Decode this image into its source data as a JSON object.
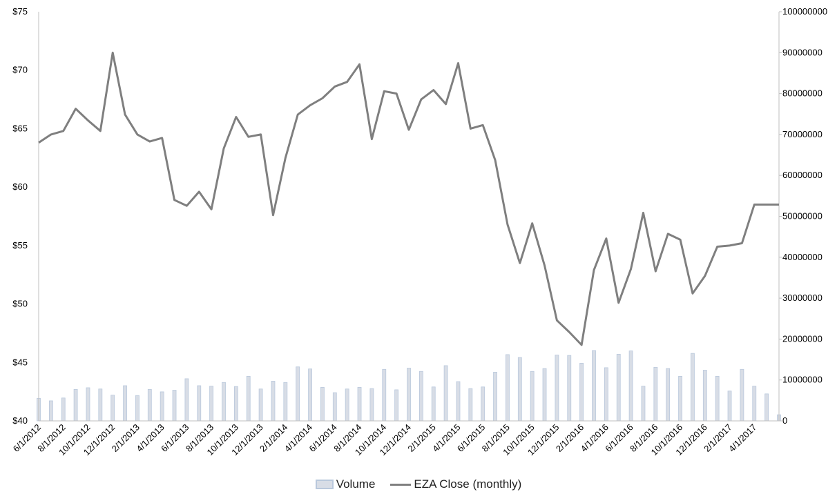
{
  "chart_data": {
    "type": "line",
    "title": "",
    "categories": [
      "6/1/2012",
      "7/1/2012",
      "8/1/2012",
      "9/1/2012",
      "10/1/2012",
      "11/1/2012",
      "12/1/2012",
      "1/1/2013",
      "2/1/2013",
      "3/1/2013",
      "4/1/2013",
      "5/1/2013",
      "6/1/2013",
      "7/1/2013",
      "8/1/2013",
      "9/1/2013",
      "10/1/2013",
      "11/1/2013",
      "12/1/2013",
      "1/1/2014",
      "2/1/2014",
      "3/1/2014",
      "4/1/2014",
      "5/1/2014",
      "6/1/2014",
      "7/1/2014",
      "8/1/2014",
      "9/1/2014",
      "10/1/2014",
      "11/1/2014",
      "12/1/2014",
      "1/1/2015",
      "2/1/2015",
      "3/1/2015",
      "4/1/2015",
      "5/1/2015",
      "6/1/2015",
      "7/1/2015",
      "8/1/2015",
      "9/1/2015",
      "10/1/2015",
      "11/1/2015",
      "12/1/2015",
      "1/1/2016",
      "2/1/2016",
      "3/1/2016",
      "4/1/2016",
      "5/1/2016",
      "6/1/2016",
      "7/1/2016",
      "8/1/2016",
      "9/1/2016",
      "10/1/2016",
      "11/1/2016",
      "12/1/2016",
      "1/1/2017",
      "2/1/2017",
      "3/1/2017",
      "4/1/2017",
      "5/1/2017",
      "6/1/2017"
    ],
    "x_tick_labels": [
      "6/1/2012",
      "8/1/2012",
      "10/1/2012",
      "12/1/2012",
      "2/1/2013",
      "4/1/2013",
      "6/1/2013",
      "8/1/2013",
      "10/1/2013",
      "12/1/2013",
      "2/1/2014",
      "4/1/2014",
      "6/1/2014",
      "8/1/2014",
      "10/1/2014",
      "12/1/2014",
      "2/1/2015",
      "4/1/2015",
      "6/1/2015",
      "8/1/2015",
      "10/1/2015",
      "12/1/2015",
      "2/1/2016",
      "4/1/2016",
      "6/1/2016",
      "8/1/2016",
      "10/1/2016",
      "12/1/2016",
      "2/1/2017",
      "4/1/2017"
    ],
    "series": [
      {
        "name": "Volume",
        "type": "bar",
        "axis": "right",
        "values": [
          5500000,
          4900000,
          5600000,
          7700000,
          8100000,
          7800000,
          6300000,
          8600000,
          6200000,
          7700000,
          7100000,
          7500000,
          10300000,
          8600000,
          8500000,
          9400000,
          8400000,
          10900000,
          7800000,
          9700000,
          9400000,
          13200000,
          12700000,
          8200000,
          6900000,
          7800000,
          8200000,
          7900000,
          12600000,
          7600000,
          12900000,
          12100000,
          8300000,
          13500000,
          9600000,
          7900000,
          8300000,
          11900000,
          16200000,
          15500000,
          12100000,
          12800000,
          16100000,
          16000000,
          14100000,
          17200000,
          13000000,
          16300000,
          17100000,
          8500000,
          13100000,
          12800000,
          10900000,
          16500000,
          12400000,
          10900000,
          7300000,
          12600000,
          8500000,
          6600000,
          1500000
        ]
      },
      {
        "name": "EZA Close (monthly)",
        "type": "line",
        "axis": "left",
        "values": [
          63.8,
          64.5,
          64.8,
          66.7,
          65.7,
          64.8,
          71.5,
          66.2,
          64.5,
          63.9,
          64.2,
          58.9,
          58.4,
          59.6,
          58.1,
          63.3,
          66.0,
          64.3,
          64.5,
          57.6,
          62.5,
          66.2,
          67.0,
          67.6,
          68.6,
          69.0,
          70.5,
          64.1,
          68.2,
          68.0,
          64.9,
          67.5,
          68.3,
          67.1,
          70.6,
          65.0,
          65.3,
          62.3,
          56.8,
          53.5,
          56.9,
          53.3,
          48.6,
          47.6,
          46.5,
          52.9,
          55.6,
          50.1,
          53.0,
          57.8,
          52.8,
          56.0,
          55.5,
          50.9,
          52.4,
          54.9,
          55.0,
          55.2,
          58.5,
          58.5,
          58.5
        ]
      }
    ],
    "y_left": {
      "ylim": [
        40,
        75
      ],
      "ticks": [
        "$40",
        "$45",
        "$50",
        "$55",
        "$60",
        "$65",
        "$70",
        "$75"
      ]
    },
    "y_right": {
      "ylim": [
        0,
        100000000
      ],
      "ticks": [
        "0",
        "10000000",
        "20000000",
        "30000000",
        "40000000",
        "50000000",
        "60000000",
        "70000000",
        "80000000",
        "90000000",
        "100000000"
      ]
    },
    "grid": false,
    "legend_position": "bottom",
    "colors": {
      "line": "#7f7f7f",
      "bar_fill": "#d8dde6",
      "bar_edge": "#b9c8dc",
      "axis": "#bfbfbf"
    }
  },
  "legend": {
    "volume_label": "Volume",
    "close_label": "EZA Close (monthly)"
  }
}
